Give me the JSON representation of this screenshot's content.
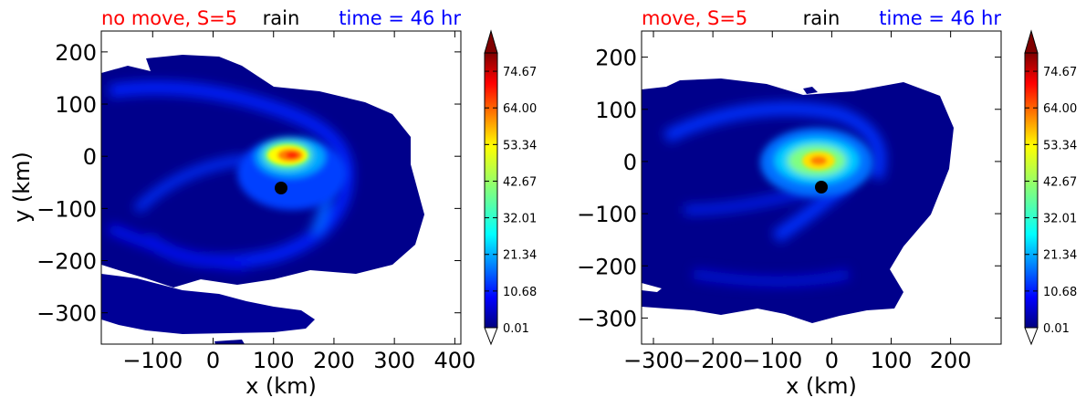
{
  "chart_data": [
    {
      "type": "heatmap",
      "panel": "left",
      "title_left": "no move, S=5",
      "title_center": "rain",
      "title_right": "time = 46 hr",
      "title_colors": {
        "left": "#ff0000",
        "center": "#000000",
        "right": "#0000ff"
      },
      "xlabel": "x (km)",
      "ylabel": "y (km)",
      "xlim": [
        -185,
        410
      ],
      "ylim": [
        -360,
        240
      ],
      "xticks": [
        -100,
        0,
        100,
        200,
        300,
        400
      ],
      "yticks": [
        200,
        100,
        0,
        -100,
        -200,
        -300
      ],
      "xtick_labels": [
        "−100",
        "0",
        "100",
        "200",
        "300",
        "400"
      ],
      "ytick_labels": [
        "200",
        "100",
        "0",
        "−100",
        "−200",
        "−300"
      ],
      "center_marker": {
        "x": 110,
        "y": -60
      },
      "max_region": {
        "x": 130,
        "y": 0,
        "value": 70
      },
      "colorbar": {
        "ticks": [
          0.01,
          10.68,
          21.34,
          32.01,
          42.67,
          53.34,
          64.0,
          74.67
        ],
        "tick_labels": [
          "0.01",
          "10.68",
          "21.34",
          "32.01",
          "42.67",
          "53.34",
          "64.00",
          "74.67"
        ],
        "extend": "both",
        "colormap": "jet"
      }
    },
    {
      "type": "heatmap",
      "panel": "right",
      "title_left": "move, S=5",
      "title_center": "rain",
      "title_right": "time = 46 hr",
      "title_colors": {
        "left": "#ff0000",
        "center": "#000000",
        "right": "#0000ff"
      },
      "xlabel": "x (km)",
      "ylabel": "",
      "xlim": [
        -320,
        285
      ],
      "ylim": [
        -350,
        250
      ],
      "xticks": [
        -300,
        -200,
        -100,
        0,
        100,
        200
      ],
      "yticks": [
        200,
        100,
        0,
        -100,
        -200,
        -300
      ],
      "xtick_labels": [
        "−300",
        "−200",
        "−100",
        "0",
        "100",
        "200"
      ],
      "ytick_labels": [
        "200",
        "100",
        "0",
        "−100",
        "−200",
        "−300"
      ],
      "center_marker": {
        "x": -15,
        "y": -50
      },
      "max_region": {
        "x": -15,
        "y": 5,
        "value": 55
      },
      "colorbar": {
        "ticks": [
          0.01,
          10.68,
          21.34,
          32.01,
          42.67,
          53.34,
          64.0,
          74.67
        ],
        "tick_labels": [
          "0.01",
          "10.68",
          "21.34",
          "32.01",
          "42.67",
          "53.34",
          "64.00",
          "74.67"
        ],
        "extend": "both",
        "colormap": "jet"
      }
    }
  ]
}
